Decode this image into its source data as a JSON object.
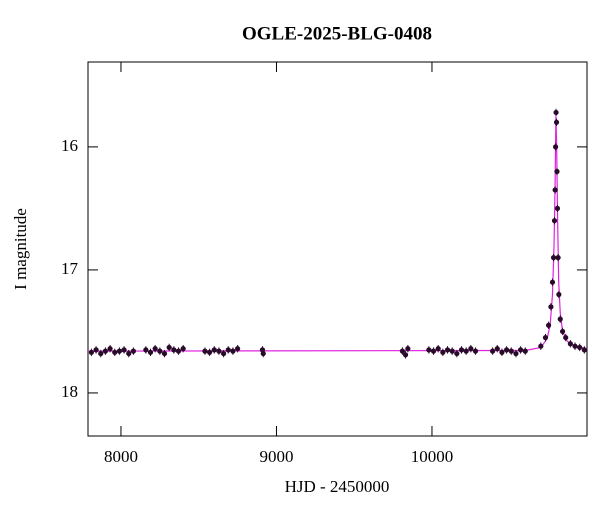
{
  "chart_data": {
    "type": "scatter",
    "title": "OGLE-2025-BLG-0408",
    "xlabel": "HJD - 2450000",
    "ylabel": "I magnitude",
    "xlim": [
      7788,
      10997
    ],
    "ylim": [
      18.35,
      15.31
    ],
    "xticks": [
      8000,
      9000,
      10000
    ],
    "yticks": [
      16,
      17,
      18
    ],
    "points": {
      "color": "#2a0a2a",
      "yerr": 0.03,
      "x": [
        7810,
        7840,
        7870,
        7900,
        7930,
        7960,
        7990,
        8020,
        8050,
        8080,
        8160,
        8190,
        8220,
        8250,
        8280,
        8310,
        8340,
        8370,
        8400,
        8540,
        8570,
        8600,
        8630,
        8660,
        8690,
        8720,
        8750,
        8910,
        8915,
        9810,
        9830,
        9845,
        9980,
        10010,
        10040,
        10070,
        10100,
        10130,
        10160,
        10190,
        10220,
        10250,
        10280,
        10390,
        10420,
        10450,
        10480,
        10510,
        10540,
        10570,
        10600,
        10700,
        10730,
        10750,
        10765,
        10775,
        10782,
        10788,
        10792,
        10795,
        10798,
        10801,
        10804,
        10807,
        10811,
        10816,
        10825,
        10840,
        10860,
        10890,
        10920,
        10950,
        10980
      ],
      "values": [
        17.67,
        17.65,
        17.68,
        17.66,
        17.64,
        17.67,
        17.66,
        17.65,
        17.68,
        17.66,
        17.65,
        17.67,
        17.64,
        17.66,
        17.68,
        17.63,
        17.65,
        17.66,
        17.64,
        17.66,
        17.67,
        17.65,
        17.66,
        17.68,
        17.65,
        17.66,
        17.64,
        17.65,
        17.68,
        17.66,
        17.69,
        17.64,
        17.65,
        17.66,
        17.64,
        17.67,
        17.65,
        17.66,
        17.68,
        17.65,
        17.66,
        17.64,
        17.66,
        17.66,
        17.64,
        17.67,
        17.65,
        17.66,
        17.68,
        17.65,
        17.66,
        17.62,
        17.55,
        17.45,
        17.3,
        17.1,
        16.9,
        16.6,
        16.35,
        16.0,
        15.72,
        15.8,
        16.2,
        16.5,
        16.9,
        17.2,
        17.4,
        17.5,
        17.55,
        17.6,
        17.62,
        17.63,
        17.65
      ]
    },
    "model": {
      "color": "#e020e0",
      "x": [
        7788,
        10600,
        10700,
        10740,
        10760,
        10775,
        10785,
        10792,
        10797,
        10802,
        10808,
        10815,
        10825,
        10840,
        10870,
        10920,
        10997
      ],
      "values": [
        17.66,
        17.655,
        17.63,
        17.56,
        17.45,
        17.2,
        16.8,
        16.3,
        15.75,
        16.0,
        16.6,
        17.1,
        17.35,
        17.5,
        17.58,
        17.62,
        17.64
      ]
    }
  }
}
